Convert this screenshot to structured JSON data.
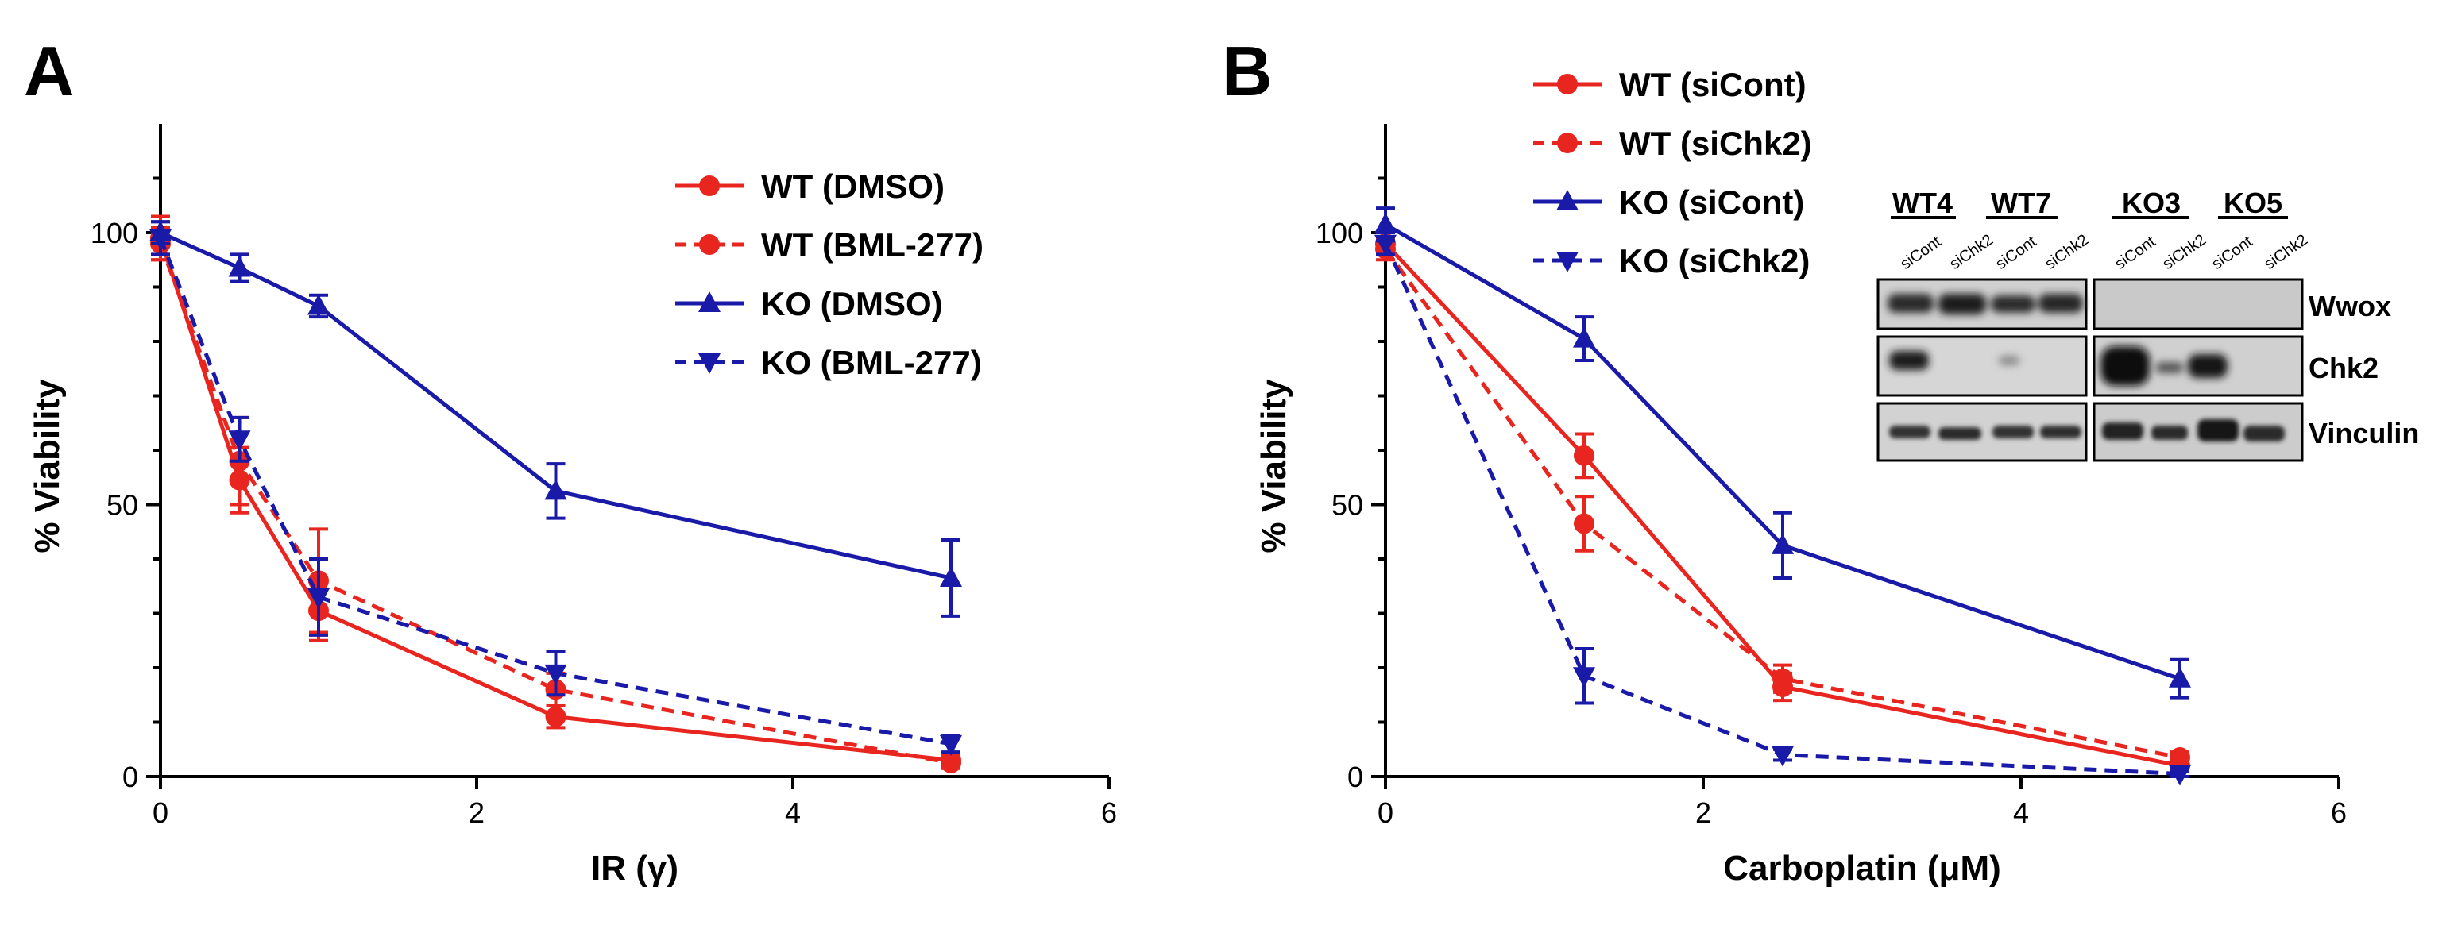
{
  "chart_data": [
    {
      "panel": "A",
      "type": "line",
      "xlabel": "IR (γ)",
      "ylabel": "% Viability",
      "xlim": [
        0,
        6
      ],
      "ylim": [
        0,
        120
      ],
      "xticks": [
        "0",
        "2",
        "4",
        "6"
      ],
      "yticks": [
        "0",
        "50",
        "100"
      ],
      "legend_position": "top-right",
      "series": [
        {
          "name": "WT (DMSO)",
          "color": "#e8251f",
          "style": "solid",
          "marker": "circle",
          "x": [
            0,
            0.5,
            1,
            2.5,
            5
          ],
          "y": [
            99,
            54.5,
            30.5,
            11,
            3
          ],
          "err": [
            4,
            6,
            5.5,
            2,
            1
          ]
        },
        {
          "name": "WT (BML-277)",
          "color": "#e8251f",
          "style": "dashed",
          "marker": "circle",
          "x": [
            0,
            0.5,
            1,
            2.5,
            5
          ],
          "y": [
            98,
            58,
            36,
            16,
            2.5
          ],
          "err": [
            3,
            8,
            9.5,
            3,
            1
          ]
        },
        {
          "name": "KO (DMSO)",
          "color": "#1a1aa8",
          "style": "solid",
          "marker": "triangle-up",
          "x": [
            0,
            0.5,
            1,
            2.5,
            5
          ],
          "y": [
            100,
            93.5,
            86.5,
            52.5,
            36.5
          ],
          "err": [
            2,
            2.5,
            2,
            5,
            7
          ]
        },
        {
          "name": "KO (BML-277)",
          "color": "#1a1aa8",
          "style": "dashed",
          "marker": "triangle-down",
          "x": [
            0,
            0.5,
            1,
            2.5,
            5
          ],
          "y": [
            99,
            62,
            33,
            19,
            6
          ],
          "err": [
            3,
            4,
            7,
            4,
            1.5
          ]
        }
      ]
    },
    {
      "panel": "B",
      "type": "line",
      "xlabel": "Carboplatin (μM)",
      "ylabel": "% Viability",
      "xlim": [
        0,
        6
      ],
      "ylim": [
        0,
        120
      ],
      "xticks": [
        "0",
        "2",
        "4",
        "6"
      ],
      "yticks": [
        "0",
        "50",
        "100"
      ],
      "legend_position": "top-left",
      "series": [
        {
          "name": "WT (siCont)",
          "color": "#e8251f",
          "style": "solid",
          "marker": "circle",
          "x": [
            0,
            1.25,
            2.5,
            5
          ],
          "y": [
            98,
            59,
            16.5,
            2
          ],
          "err": [
            2,
            4,
            2.5,
            1
          ]
        },
        {
          "name": "WT (siChk2)",
          "color": "#e8251f",
          "style": "dashed",
          "marker": "circle",
          "x": [
            0,
            1.25,
            2.5,
            5
          ],
          "y": [
            97,
            46.5,
            18,
            3.5
          ],
          "err": [
            2,
            5,
            2.5,
            1
          ]
        },
        {
          "name": "KO (siCont)",
          "color": "#1a1aa8",
          "style": "solid",
          "marker": "triangle-up",
          "x": [
            0,
            1.25,
            2.5,
            5
          ],
          "y": [
            101.5,
            80.5,
            42.5,
            18
          ],
          "err": [
            3,
            4,
            6,
            3.5
          ]
        },
        {
          "name": "KO (siChk2)",
          "color": "#1a1aa8",
          "style": "dashed",
          "marker": "triangle-down",
          "x": [
            0,
            1.25,
            2.5,
            5
          ],
          "y": [
            98,
            18.5,
            4,
            0.5
          ],
          "err": [
            2,
            5,
            1,
            0.5
          ]
        }
      ]
    }
  ],
  "blot": {
    "groups": [
      "WT4",
      "WT7",
      "KO3",
      "KO5"
    ],
    "lanes": [
      "siCont",
      "siChk2",
      "siCont",
      "siChk2",
      "siCont",
      "siChk2",
      "siCont",
      "siChk2"
    ],
    "rows": [
      "Wwox",
      "Chk2",
      "Vinculin"
    ]
  }
}
